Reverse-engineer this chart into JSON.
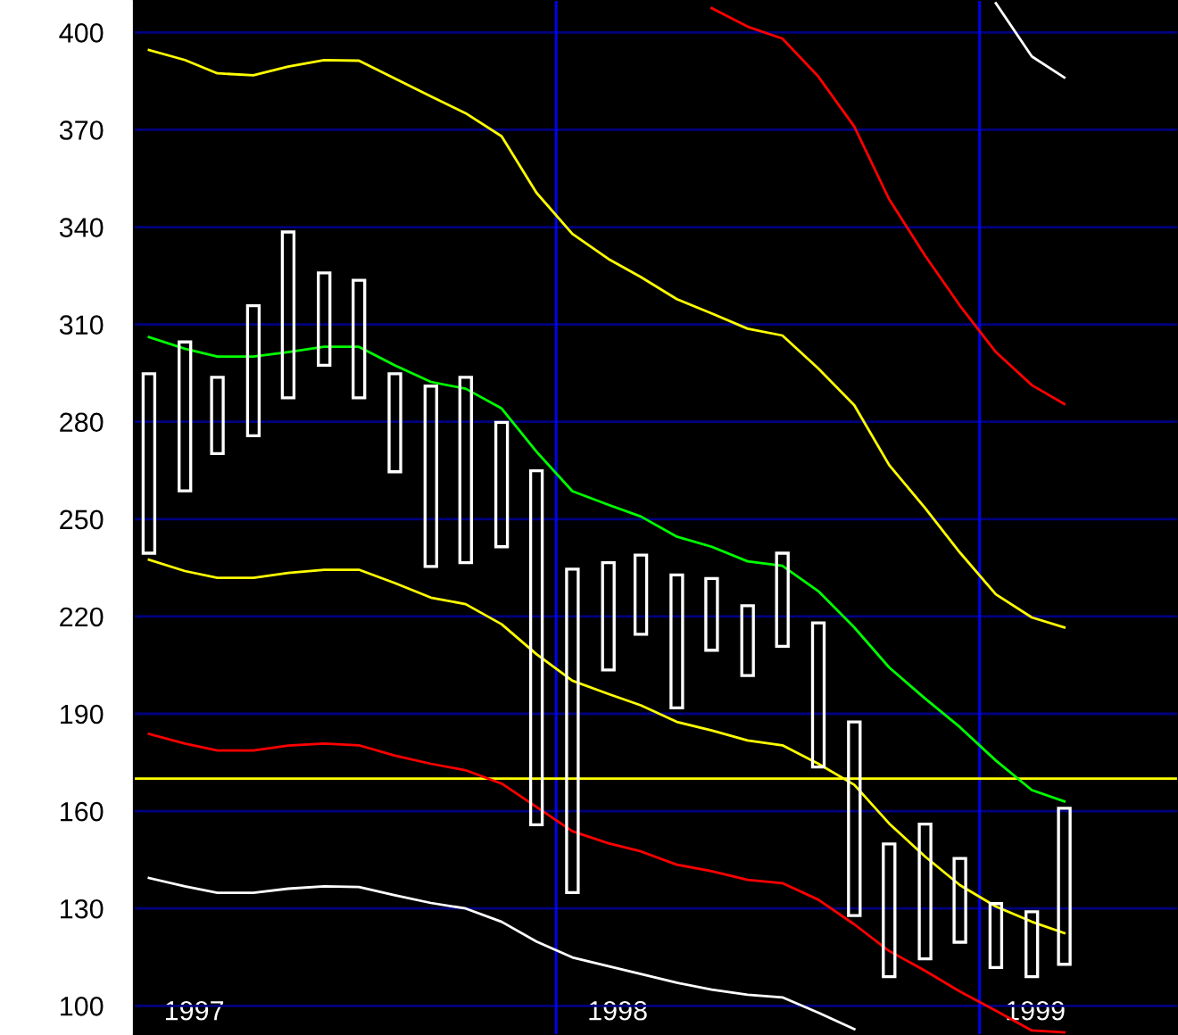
{
  "chart_data": {
    "type": "line",
    "x": [
      "1997-01-15",
      "1997-02-15",
      "1997-03-15",
      "1997-04-15",
      "1997-05-15",
      "1997-06-15",
      "1997-07-15",
      "1997-08-15",
      "1997-09-15",
      "1997-10-15",
      "1997-11-15",
      "1997-12-15",
      "1998-01-15",
      "1998-02-15",
      "1998-03-15",
      "1998-04-15",
      "1998-05-15",
      "1998-06-15",
      "1998-07-15",
      "1998-08-15",
      "1998-09-15",
      "1998-10-15",
      "1998-11-15",
      "1998-12-15",
      "1999-01-15",
      "1999-02-15",
      "1999-03-15"
    ],
    "series": [
      {
        "type": "bar",
        "color": "#ffffff",
        "base": [
          239.5,
          258.7,
          270.2,
          275.7,
          287.4,
          297.4,
          287.4,
          264.6,
          235.4,
          236.6,
          241.5,
          155.8,
          134.9,
          203.5,
          214.5,
          191.8,
          209.6,
          201.8,
          210.8,
          173.6,
          127.8,
          109,
          114.5,
          119.6,
          111.8,
          109,
          112.8
        ],
        "values": [
          55.3,
          45.9,
          23.5,
          40.1,
          51.1,
          28.5,
          36.2,
          30.2,
          55.6,
          57.1,
          38.3,
          109.1,
          99.7,
          33.1,
          24.4,
          41,
          22.1,
          21.5,
          28.7,
          44.4,
          59.7,
          40.9,
          41.5,
          25.8,
          19.7,
          20,
          48.1
        ]
      },
      {
        "color": "#00ff00",
        "values": [
          306.1,
          302.5,
          300.1,
          300.1,
          301.5,
          303.1,
          303.1,
          297.4,
          292.3,
          290.2,
          284.1,
          270.8,
          258.6,
          254.4,
          250.8,
          244.6,
          241.5,
          237,
          235.6,
          227.8,
          216.6,
          204.3,
          194.7,
          185.9,
          175.6,
          166.5,
          163
        ]
      },
      {
        "color": "#ffff00",
        "values": [
          394.6,
          391.5,
          387.4,
          386.8,
          389.5,
          391.5,
          391.3,
          385.8,
          380.3,
          375.1,
          368,
          350.6,
          337.9,
          330.2,
          324.6,
          317.8,
          313.4,
          308.7,
          306.6,
          296.4,
          285.1,
          266.7,
          253.4,
          239.7,
          226.8,
          219.7,
          216.6
        ]
      },
      {
        "color": "#ffff00",
        "values": [
          237.5,
          234,
          231.9,
          231.9,
          233.4,
          234.4,
          234.4,
          230.3,
          225.8,
          223.8,
          217.6,
          208.4,
          200.2,
          196.1,
          192.6,
          187.5,
          184.9,
          181.8,
          180.3,
          174.6,
          168.1,
          156.2,
          146,
          137.2,
          130.6,
          125.9,
          122.4
        ]
      },
      {
        "color": "#ff0000",
        "values": [
          null,
          null,
          null,
          null,
          null,
          null,
          null,
          null,
          null,
          null,
          null,
          null,
          null,
          null,
          null,
          null,
          407.5,
          401.8,
          398.1,
          386.4,
          371,
          348.6,
          331.2,
          315.8,
          301.5,
          291.3,
          285.5
        ]
      },
      {
        "color": "#ff0000",
        "values": [
          183.8,
          180.8,
          178.7,
          178.7,
          180.2,
          180.8,
          180.3,
          177.1,
          174.6,
          172.6,
          168.5,
          161.3,
          153.8,
          150.1,
          147.6,
          143.5,
          141.5,
          138.8,
          137.8,
          132.7,
          125.1,
          116.9,
          110.8,
          104.4,
          98.5,
          92.4,
          91.8
        ]
      },
      {
        "color": "#ffffff",
        "values": [
          null,
          null,
          null,
          null,
          null,
          null,
          null,
          null,
          null,
          null,
          null,
          null,
          null,
          null,
          null,
          null,
          null,
          null,
          null,
          null,
          null,
          null,
          null,
          null,
          409,
          392.6,
          386.1
        ]
      },
      {
        "color": "#ffffff",
        "values": [
          139.4,
          136.8,
          134.8,
          134.8,
          136.1,
          136.8,
          136.6,
          134.1,
          131.7,
          130,
          125.9,
          119.8,
          114.9,
          112.2,
          109.8,
          107.1,
          105,
          103.4,
          102.6,
          97.9,
          92.8,
          null,
          null,
          null,
          null,
          null,
          null
        ]
      }
    ],
    "xlim": [
      "1997-01-02",
      "1999-06-21"
    ],
    "xticks": [
      {
        "value": "1997-02-23",
        "label": "1997"
      },
      {
        "value": "1998-02-23",
        "label": "1998"
      },
      {
        "value": "1999-02-18",
        "label": "1999"
      }
    ],
    "ylim": [
      91,
      410
    ],
    "yticks": [
      100,
      130,
      160,
      190,
      220,
      250,
      280,
      310,
      340,
      370,
      400
    ],
    "grid": "y",
    "ref_lines": [
      {
        "axis": "x",
        "value": "1998-01-01",
        "color": "#0000ff"
      },
      {
        "axis": "x",
        "value": "1999-01-01",
        "color": "#0000ff"
      },
      {
        "axis": "y",
        "value": 170,
        "color": "#ffff00"
      }
    ]
  }
}
